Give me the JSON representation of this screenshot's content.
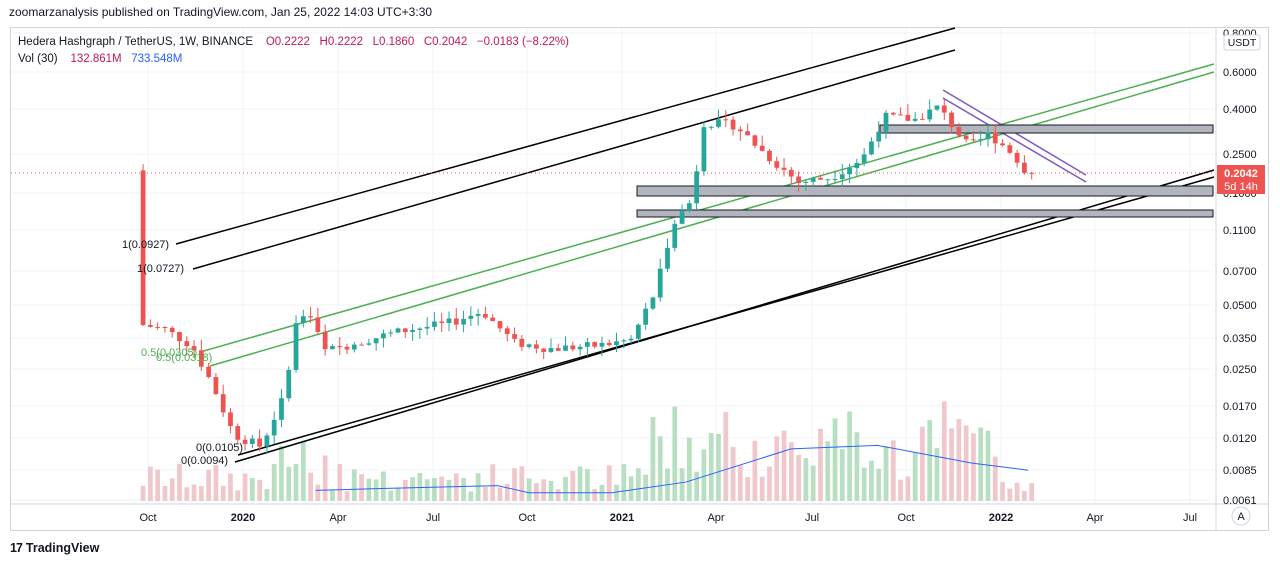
{
  "header": {
    "published": "zoomarzanalysis published on TradingView.com, Jan 25, 2022 14:03 UTC+3:30"
  },
  "legend": {
    "symbol": "Hedera Hashgraph / TetherUS, 1W, BINANCE",
    "o": "O0.2222",
    "h": "H0.2222",
    "l": "L0.1860",
    "c": "C0.2042",
    "change": "−0.0183 (−8.22%)",
    "vol_label": "Vol (30)",
    "vol_value": "132.861M",
    "vol_ma": "733.548M"
  },
  "footer": {
    "brand": "TradingView"
  },
  "chart_data": {
    "type": "candlestick",
    "y_scale": "log",
    "currency_label": "USDT",
    "last_price_label": "0.2042",
    "countdown_label": "5d 14h",
    "auto_scale_label": "A",
    "y_ticks": [
      "0.8000",
      "0.6000",
      "0.4000",
      "0.2500",
      "0.1600",
      "0.1100",
      "0.0700",
      "0.0500",
      "0.0350",
      "0.0250",
      "0.0170",
      "0.0120",
      "0.0085",
      "0.0061"
    ],
    "x_ticks": [
      "Oct",
      "2020",
      "Apr",
      "Jul",
      "Oct",
      "2021",
      "Apr",
      "Jul",
      "Oct",
      "2022",
      "Apr",
      "Jul"
    ],
    "bold_x_ticks": [
      "2020",
      "2021",
      "2022"
    ],
    "colors": {
      "up": "#26a69a",
      "down": "#ef5350",
      "up_vol": "#b9dfc3",
      "down_vol": "#f0c8cc",
      "channel": "#000000",
      "green_channel": "#4caf50",
      "purple": "#7e57c2",
      "vol_ma": "#2962ff",
      "zone": "#b2b5be"
    },
    "fib_labels": [
      "1(0.0927)",
      "1(0.0727)",
      "0.5(0.0305)",
      "0.5(0.0318)",
      "0(0.0105)",
      "0(0.0094)"
    ],
    "volume_ma_series": [
      [
        "2020-03-10",
        0.007
      ],
      [
        "2020-06-01",
        0.0072
      ],
      [
        "2020-09-01",
        0.0074
      ],
      [
        "2020-10-01",
        0.0068
      ],
      [
        "2020-12-20",
        0.0068
      ],
      [
        "2021-03-01",
        0.0077
      ],
      [
        "2021-06-10",
        0.0105
      ],
      [
        "2021-09-01",
        0.0108
      ],
      [
        "2021-12-01",
        0.0093
      ],
      [
        "2022-01-24",
        0.0087
      ]
    ]
  }
}
